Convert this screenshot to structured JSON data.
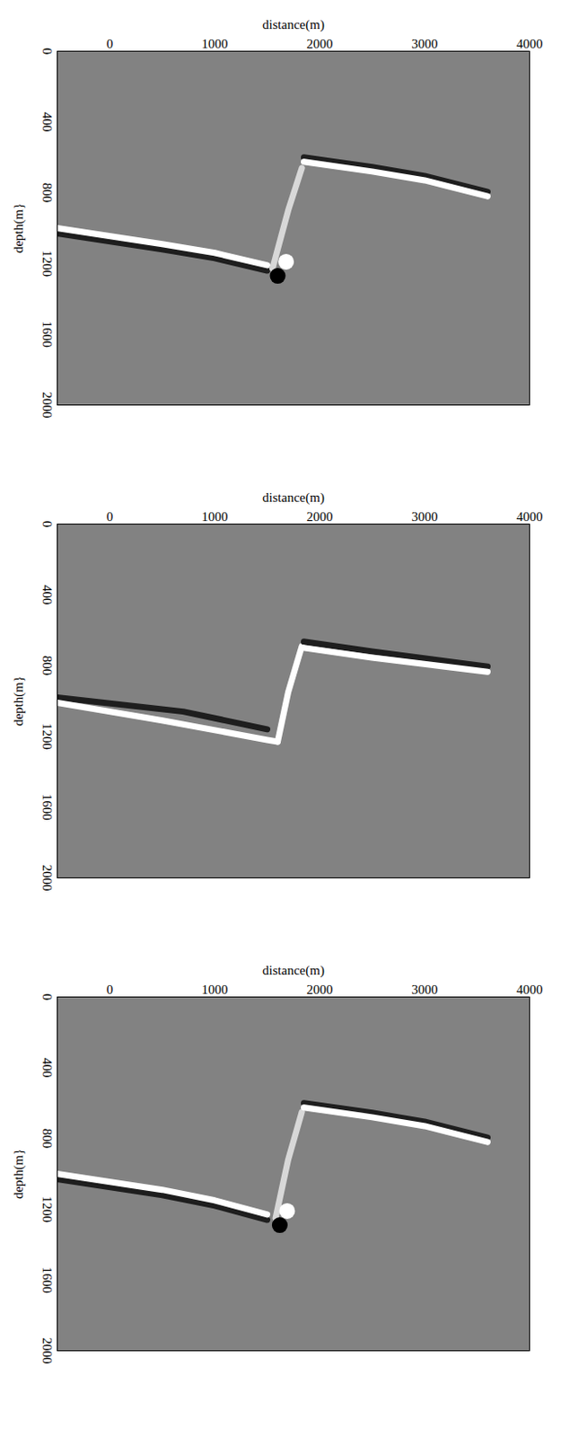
{
  "chart_data": [
    {
      "type": "image",
      "xlabel": "distance(m)",
      "ylabel": "depth(m}",
      "xlim": [
        -500,
        4000
      ],
      "ylim": [
        0,
        2000
      ],
      "xticks": [
        0,
        1000,
        2000,
        3000,
        4000
      ],
      "yticks": [
        0,
        400,
        800,
        1200,
        1600,
        2000
      ],
      "series": [
        {
          "type": "line",
          "color": "#1e1e1e",
          "points": [
            [
              -500,
              1030
            ],
            [
              500,
              1120
            ],
            [
              1000,
              1170
            ],
            [
              1500,
              1240
            ]
          ]
        },
        {
          "type": "line",
          "color": "#ffffff",
          "points": [
            [
              -500,
              1000
            ],
            [
              500,
              1090
            ],
            [
              1000,
              1140
            ],
            [
              1500,
              1210
            ]
          ]
        },
        {
          "type": "line",
          "color": "#d8d8d8",
          "points": [
            [
              1550,
              1230
            ],
            [
              1700,
              900
            ],
            [
              1830,
              660
            ]
          ]
        },
        {
          "type": "line",
          "color": "#1e1e1e",
          "points": [
            [
              1850,
              600
            ],
            [
              2500,
              655
            ],
            [
              3000,
              705
            ],
            [
              3600,
              795
            ]
          ]
        },
        {
          "type": "line",
          "color": "#ffffff",
          "points": [
            [
              1850,
              625
            ],
            [
              2500,
              680
            ],
            [
              3000,
              730
            ],
            [
              3600,
              820
            ]
          ]
        },
        {
          "type": "scatter",
          "color": "#ffffff",
          "points": [
            [
              1680,
              1190
            ]
          ]
        },
        {
          "type": "scatter",
          "color": "#000000",
          "points": [
            [
              1600,
              1270
            ]
          ]
        }
      ]
    },
    {
      "type": "image",
      "xlabel": "distance(m)",
      "ylabel": "depth(m}",
      "xlim": [
        -500,
        4000
      ],
      "ylim": [
        0,
        2000
      ],
      "xticks": [
        0,
        1000,
        2000,
        3000,
        4000
      ],
      "yticks": [
        0,
        400,
        800,
        1200,
        1600,
        2000
      ],
      "series": [
        {
          "type": "line",
          "color": "#1e1e1e",
          "points": [
            [
              -500,
              980
            ],
            [
              700,
              1060
            ],
            [
              1500,
              1160
            ]
          ]
        },
        {
          "type": "line",
          "color": "#ffffff",
          "points": [
            [
              -500,
              1010
            ],
            [
              500,
              1110
            ],
            [
              1500,
              1220
            ],
            [
              1600,
              1230
            ]
          ]
        },
        {
          "type": "line",
          "color": "#ffffff",
          "points": [
            [
              1600,
              1230
            ],
            [
              1700,
              950
            ],
            [
              1830,
              690
            ]
          ]
        },
        {
          "type": "line",
          "color": "#1e1e1e",
          "points": [
            [
              1850,
              665
            ],
            [
              2500,
              720
            ],
            [
              3600,
              805
            ]
          ]
        },
        {
          "type": "line",
          "color": "#ffffff",
          "points": [
            [
              1850,
              700
            ],
            [
              2500,
              755
            ],
            [
              3600,
              835
            ]
          ]
        }
      ]
    },
    {
      "type": "image",
      "xlabel": "distance(m)",
      "ylabel": "depth(m}",
      "xlim": [
        -500,
        4000
      ],
      "ylim": [
        0,
        2000
      ],
      "xticks": [
        0,
        1000,
        2000,
        3000,
        4000
      ],
      "yticks": [
        0,
        400,
        800,
        1200,
        1600,
        2000
      ],
      "series": [
        {
          "type": "line",
          "color": "#1e1e1e",
          "points": [
            [
              -500,
              1030
            ],
            [
              500,
              1120
            ],
            [
              1000,
              1180
            ],
            [
              1500,
              1260
            ]
          ]
        },
        {
          "type": "line",
          "color": "#ffffff",
          "points": [
            [
              -500,
              1000
            ],
            [
              500,
              1090
            ],
            [
              1000,
              1150
            ],
            [
              1500,
              1230
            ]
          ]
        },
        {
          "type": "line",
          "color": "#d8d8d8",
          "points": [
            [
              1580,
              1250
            ],
            [
              1700,
              920
            ],
            [
              1830,
              650
            ]
          ]
        },
        {
          "type": "line",
          "color": "#1e1e1e",
          "points": [
            [
              1850,
              600
            ],
            [
              2500,
              655
            ],
            [
              3000,
              705
            ],
            [
              3600,
              795
            ]
          ]
        },
        {
          "type": "line",
          "color": "#ffffff",
          "points": [
            [
              1850,
              625
            ],
            [
              2500,
              680
            ],
            [
              3000,
              730
            ],
            [
              3600,
              820
            ]
          ]
        },
        {
          "type": "scatter",
          "color": "#ffffff",
          "points": [
            [
              1690,
              1210
            ]
          ]
        },
        {
          "type": "scatter",
          "color": "#000000",
          "points": [
            [
              1620,
              1290
            ]
          ]
        }
      ]
    }
  ]
}
